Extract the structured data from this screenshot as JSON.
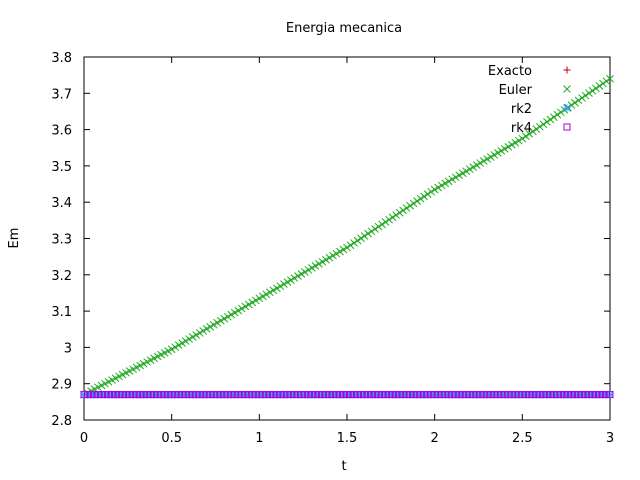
{
  "chart_data": {
    "type": "scatter",
    "title": "Energia mecanica",
    "xlabel": "t",
    "ylabel": "Em",
    "xlim": [
      0,
      3
    ],
    "ylim": [
      2.8,
      3.8
    ],
    "xticks": [
      0,
      0.5,
      1,
      1.5,
      2,
      2.5,
      3
    ],
    "xtick_labels": [
      "0",
      "0.5",
      "1",
      "1.5",
      "2",
      "2.5",
      "3"
    ],
    "yticks": [
      2.8,
      2.9,
      3,
      3.1,
      3.2,
      3.3,
      3.4,
      3.5,
      3.6,
      3.7,
      3.8
    ],
    "ytick_labels": [
      "2.8",
      "2.9",
      "3",
      "3.1",
      "3.2",
      "3.3",
      "3.4",
      "3.5",
      "3.6",
      "3.7",
      "3.8"
    ],
    "grid": false,
    "legend_position": "top-right",
    "x_sampling": {
      "start": 0,
      "end": 3,
      "step": 0.02
    },
    "series": [
      {
        "name": "Exacto",
        "marker": "plus",
        "color": "#c00000",
        "points": [
          [
            0,
            2.87
          ],
          [
            3,
            2.87
          ]
        ]
      },
      {
        "name": "Euler",
        "marker": "cross",
        "color": "#22aa22",
        "points": [
          [
            0,
            2.87
          ],
          [
            0.5,
            2.995
          ],
          [
            1,
            3.135
          ],
          [
            1.5,
            3.275
          ],
          [
            2,
            3.435
          ],
          [
            2.5,
            3.575
          ],
          [
            3,
            3.74
          ]
        ]
      },
      {
        "name": "rk2",
        "marker": "star",
        "color": "#3399ff",
        "points": [
          [
            0,
            2.87
          ],
          [
            3,
            2.87
          ]
        ]
      },
      {
        "name": "rk4",
        "marker": "square",
        "color": "#aa00dd",
        "points": [
          [
            0,
            2.87
          ],
          [
            3,
            2.87
          ]
        ]
      }
    ]
  }
}
